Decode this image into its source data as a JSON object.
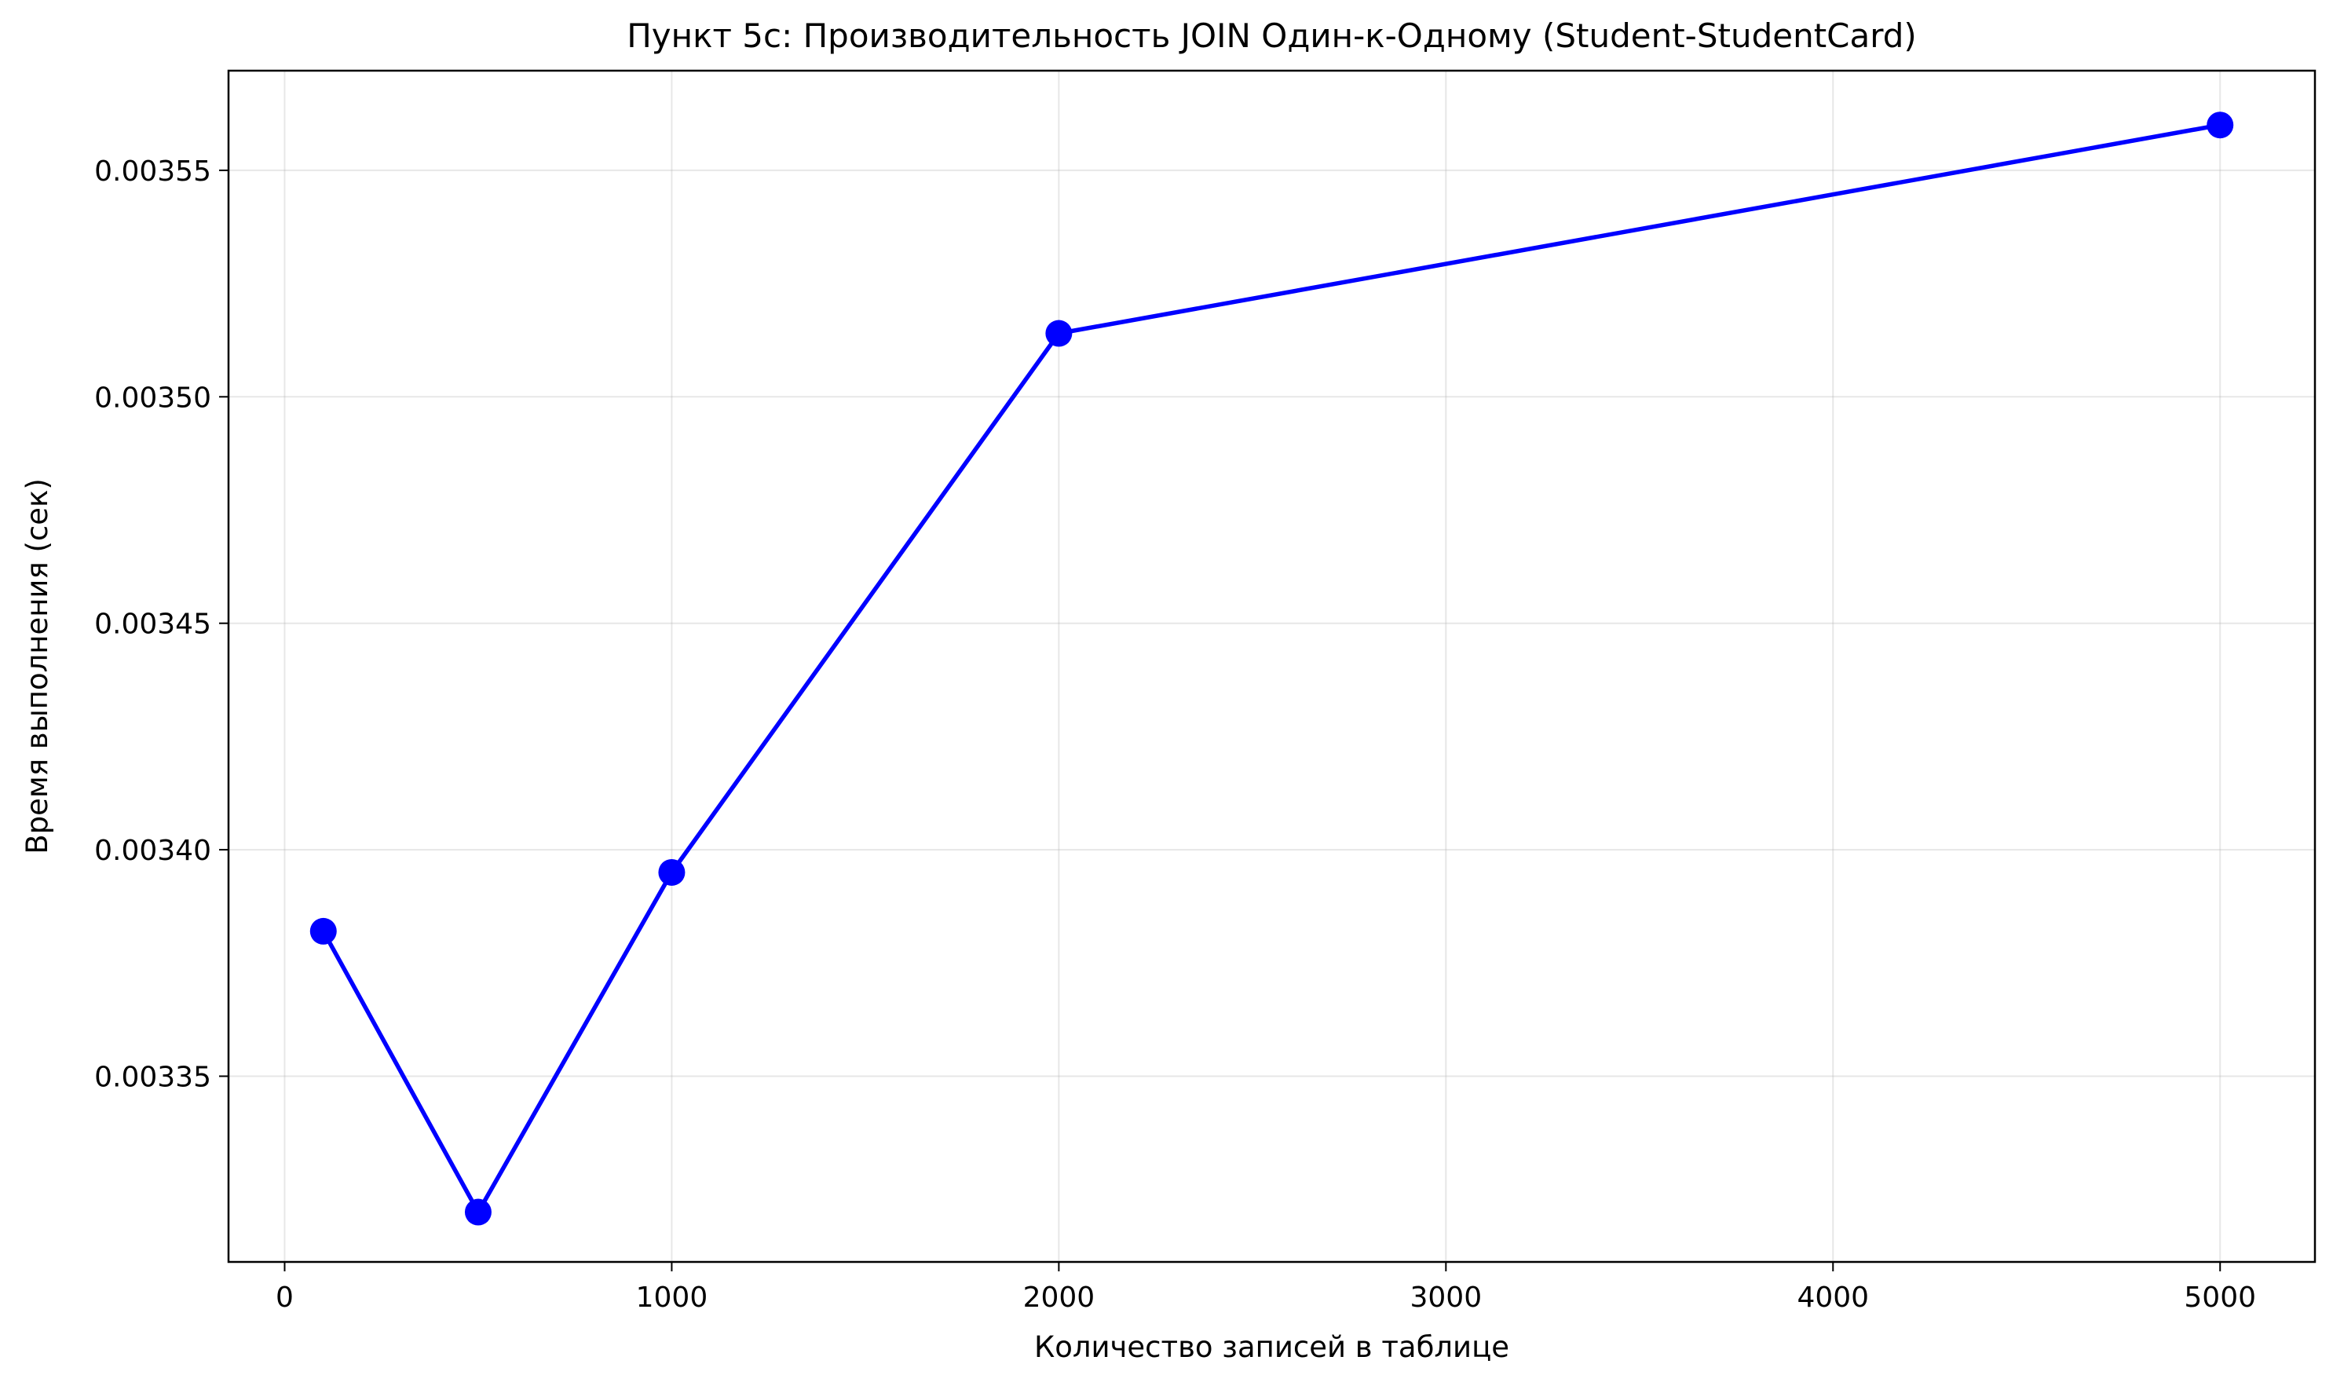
{
  "chart_data": {
    "type": "line",
    "title": "Пункт 5с: Производительность JOIN Один-к-Одному (Student-StudentCard)",
    "xlabel": "Количество записей в таблице",
    "ylabel": "Время выполнения (сек)",
    "xlim": [
      -145,
      5245
    ],
    "ylim": [
      0.003309,
      0.003572
    ],
    "xticks": [
      0,
      1000,
      2000,
      3000,
      4000,
      5000
    ],
    "xtick_labels": [
      "0",
      "1000",
      "2000",
      "3000",
      "4000",
      "5000"
    ],
    "yticks": [
      0.00335,
      0.0034,
      0.00345,
      0.0035,
      0.00355
    ],
    "ytick_labels": [
      "0.00335",
      "0.00340",
      "0.00345",
      "0.00350",
      "0.00355"
    ],
    "grid": true,
    "series": [
      {
        "color": "#0000ff",
        "marker": "circle",
        "x": [
          100,
          500,
          1000,
          2000,
          5000
        ],
        "y": [
          0.003382,
          0.00332,
          0.003395,
          0.003514,
          0.00356
        ]
      }
    ]
  }
}
